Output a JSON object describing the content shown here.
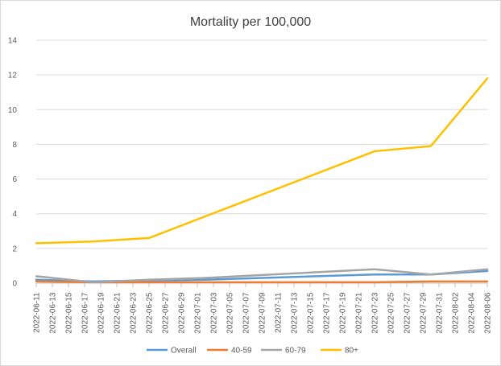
{
  "chart_data": {
    "type": "line",
    "title": "Mortality per 100,000",
    "xlabel": "",
    "ylabel": "",
    "ylim": [
      0,
      14
    ],
    "yticks": [
      0,
      2,
      4,
      6,
      8,
      10,
      12,
      14
    ],
    "grid": "horizontal",
    "legend_position": "bottom",
    "categories": [
      "2022-06-11",
      "2022-06-13",
      "2022-06-15",
      "2022-06-17",
      "2022-06-19",
      "2022-06-21",
      "2022-06-23",
      "2022-06-25",
      "2022-06-27",
      "2022-06-29",
      "2022-07-01",
      "2022-07-03",
      "2022-07-05",
      "2022-07-07",
      "2022-07-09",
      "2022-07-11",
      "2022-07-13",
      "2022-07-15",
      "2022-07-17",
      "2022-07-19",
      "2022-07-21",
      "2022-07-23",
      "2022-07-25",
      "2022-07-27",
      "2022-07-29",
      "2022-07-31",
      "2022-08-02",
      "2022-08-04",
      "2022-08-06"
    ],
    "series": [
      {
        "name": "Overall",
        "color": "#5b9bd5",
        "points": [
          {
            "x": "2022-06-11",
            "y": 0.2
          },
          {
            "x": "2022-06-18",
            "y": 0.1
          },
          {
            "x": "2022-06-25",
            "y": 0.15
          },
          {
            "x": "2022-07-02",
            "y": 0.2
          },
          {
            "x": "2022-07-23",
            "y": 0.5
          },
          {
            "x": "2022-07-30",
            "y": 0.5
          },
          {
            "x": "2022-08-06",
            "y": 0.7
          }
        ]
      },
      {
        "name": "40-59",
        "color": "#ed7d31",
        "points": [
          {
            "x": "2022-06-11",
            "y": 0.1
          },
          {
            "x": "2022-06-18",
            "y": 0.05
          },
          {
            "x": "2022-06-25",
            "y": 0.05
          },
          {
            "x": "2022-07-02",
            "y": 0.05
          },
          {
            "x": "2022-07-23",
            "y": 0.05
          },
          {
            "x": "2022-07-30",
            "y": 0.1
          },
          {
            "x": "2022-08-06",
            "y": 0.1
          }
        ]
      },
      {
        "name": "60-79",
        "color": "#a5a5a5",
        "points": [
          {
            "x": "2022-06-11",
            "y": 0.4
          },
          {
            "x": "2022-06-18",
            "y": 0.05
          },
          {
            "x": "2022-06-25",
            "y": 0.2
          },
          {
            "x": "2022-07-02",
            "y": 0.3
          },
          {
            "x": "2022-07-23",
            "y": 0.8
          },
          {
            "x": "2022-07-30",
            "y": 0.5
          },
          {
            "x": "2022-08-06",
            "y": 0.8
          }
        ]
      },
      {
        "name": "80+",
        "color": "#ffc000",
        "points": [
          {
            "x": "2022-06-11",
            "y": 2.3
          },
          {
            "x": "2022-06-18",
            "y": 2.4
          },
          {
            "x": "2022-06-25",
            "y": 2.6
          },
          {
            "x": "2022-07-23",
            "y": 7.6
          },
          {
            "x": "2022-07-30",
            "y": 7.9
          },
          {
            "x": "2022-08-06",
            "y": 11.8
          }
        ]
      }
    ]
  }
}
